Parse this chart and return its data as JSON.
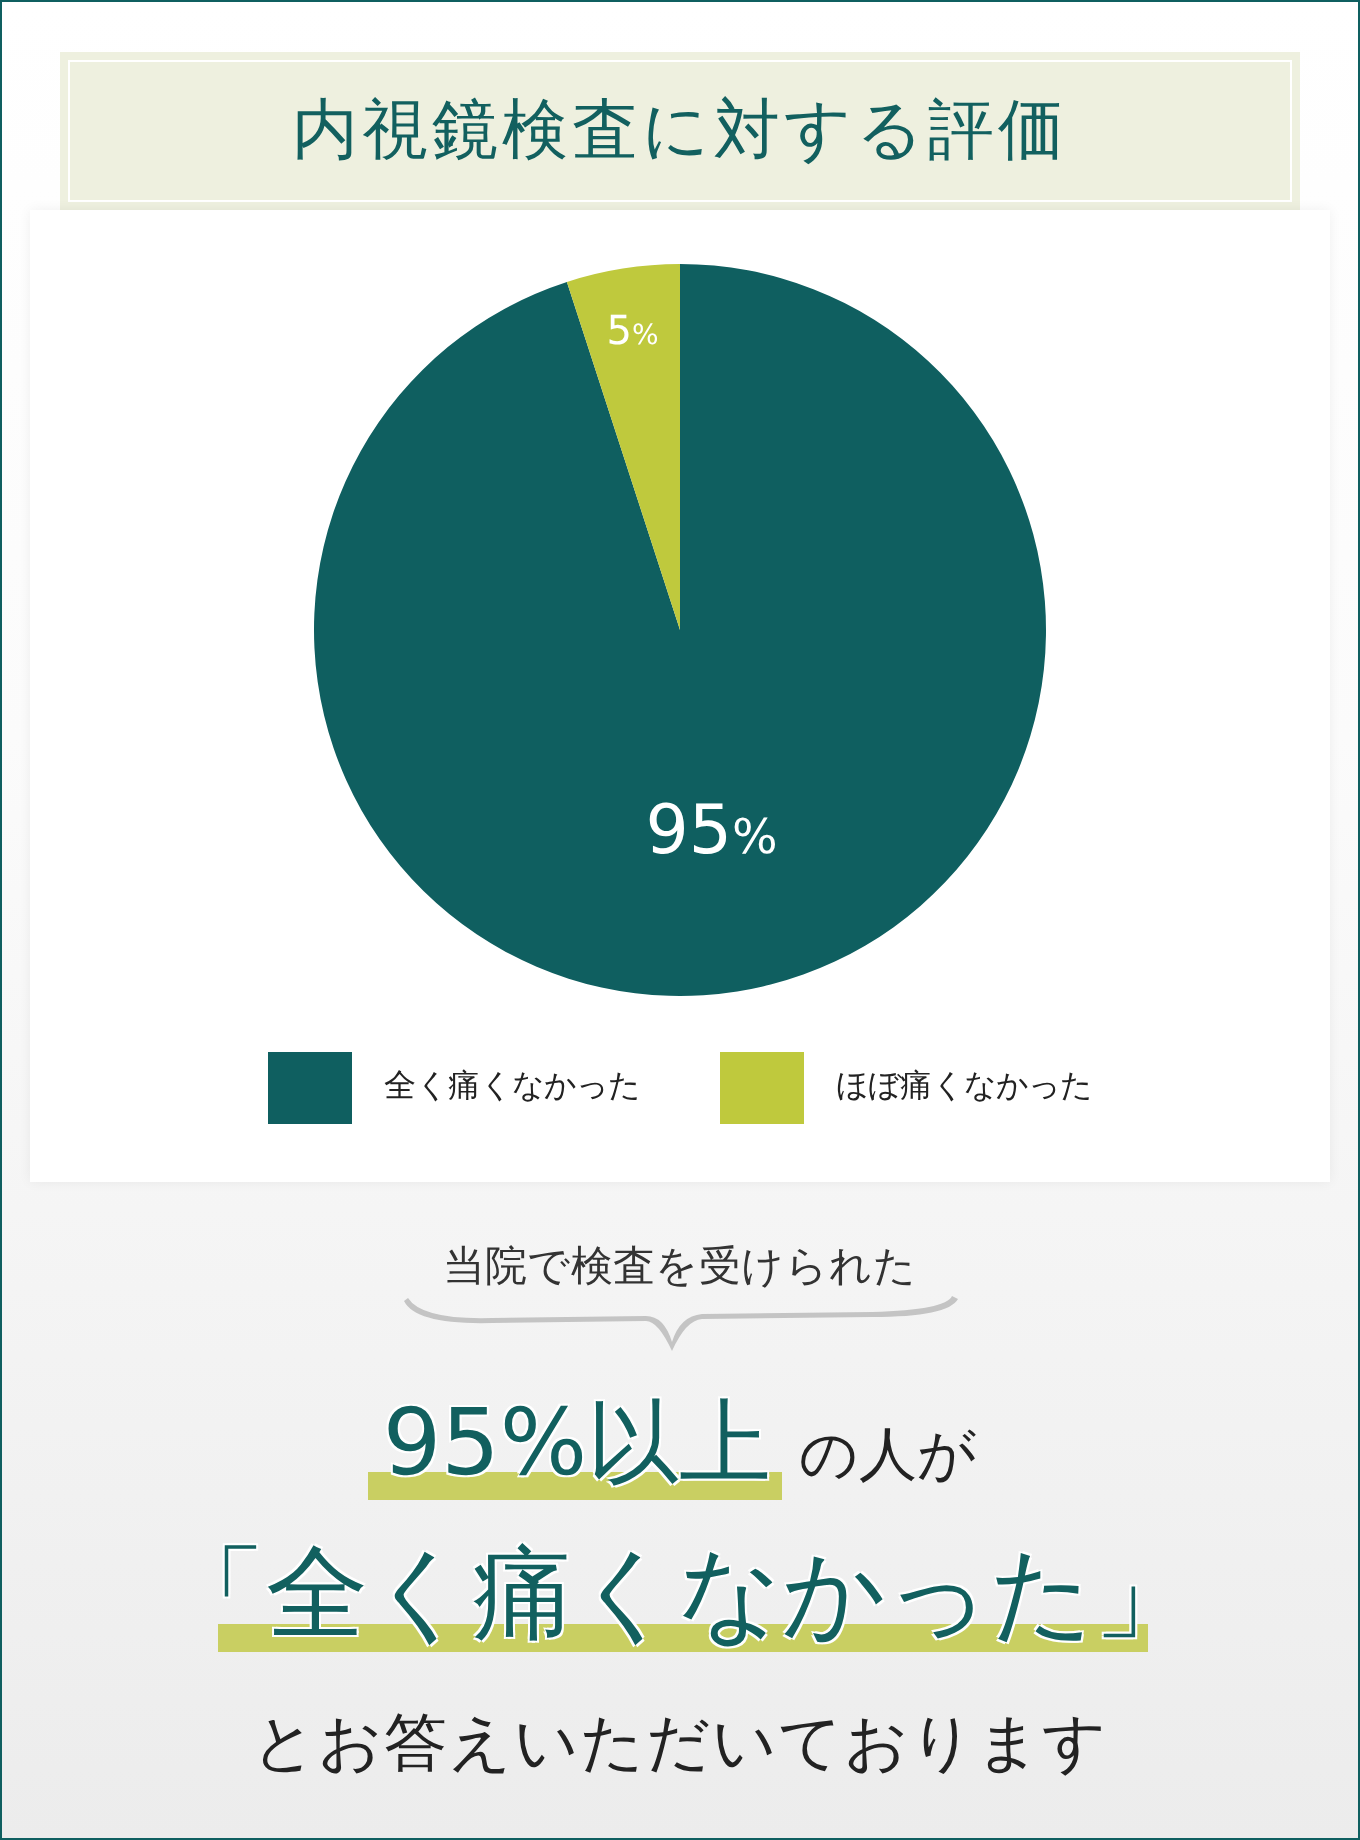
{
  "chart_data": {
    "type": "pie",
    "title": "内視鏡検査に対する評価",
    "categories": [
      "全く痛くなかった",
      "ほぼ痛くなかった"
    ],
    "values": [
      95,
      5
    ],
    "colors": [
      "#0f5f60",
      "#bfc93d"
    ],
    "value_labels": [
      "95%",
      "5%"
    ],
    "legend": "bottom",
    "annotations": [
      "当院で検査を受けられた",
      "95%以上",
      "の人が",
      "「全く痛くなかった」",
      "とお答えいただいております"
    ]
  }
}
